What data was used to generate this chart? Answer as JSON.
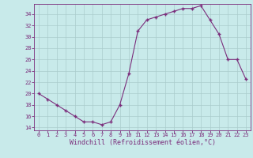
{
  "x": [
    0,
    1,
    2,
    3,
    4,
    5,
    6,
    7,
    8,
    9,
    10,
    11,
    12,
    13,
    14,
    15,
    16,
    17,
    18,
    19,
    20,
    21,
    22,
    23
  ],
  "y": [
    20.0,
    19.0,
    18.0,
    17.0,
    16.0,
    15.0,
    15.0,
    14.5,
    15.0,
    18.0,
    23.5,
    31.0,
    33.0,
    33.5,
    34.0,
    34.5,
    35.0,
    35.0,
    35.5,
    33.0,
    30.5,
    26.0,
    26.0,
    22.5
  ],
  "line_color": "#7B2D7B",
  "marker": "+",
  "marker_size": 3.5,
  "marker_lw": 1.0,
  "bg_color": "#c8eaea",
  "grid_color": "#aacccc",
  "xlabel": "Windchill (Refroidissement éolien,°C)",
  "xlabel_color": "#7B2D7B",
  "tick_color": "#7B2D7B",
  "ylim": [
    13.5,
    35.8
  ],
  "xlim": [
    -0.5,
    23.5
  ],
  "yticks": [
    14,
    16,
    18,
    20,
    22,
    24,
    26,
    28,
    30,
    32,
    34
  ],
  "xticks": [
    0,
    1,
    2,
    3,
    4,
    5,
    6,
    7,
    8,
    9,
    10,
    11,
    12,
    13,
    14,
    15,
    16,
    17,
    18,
    19,
    20,
    21,
    22,
    23
  ],
  "tick_fontsize": 5.0,
  "xlabel_fontsize": 6.0
}
